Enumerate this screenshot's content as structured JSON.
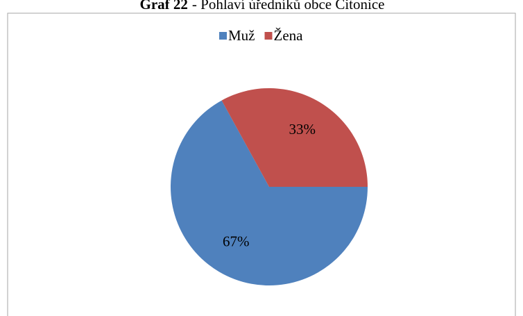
{
  "chart_data": {
    "type": "pie",
    "title_number": "Graf 22",
    "title": "- Pohlaví úředníků obce Citonice",
    "categories": [
      "Muž",
      "Žena"
    ],
    "values": [
      67,
      33
    ],
    "value_labels": [
      "67%",
      "33%"
    ],
    "colors": [
      "#4f81bd",
      "#c0504d"
    ],
    "legend": "top"
  }
}
